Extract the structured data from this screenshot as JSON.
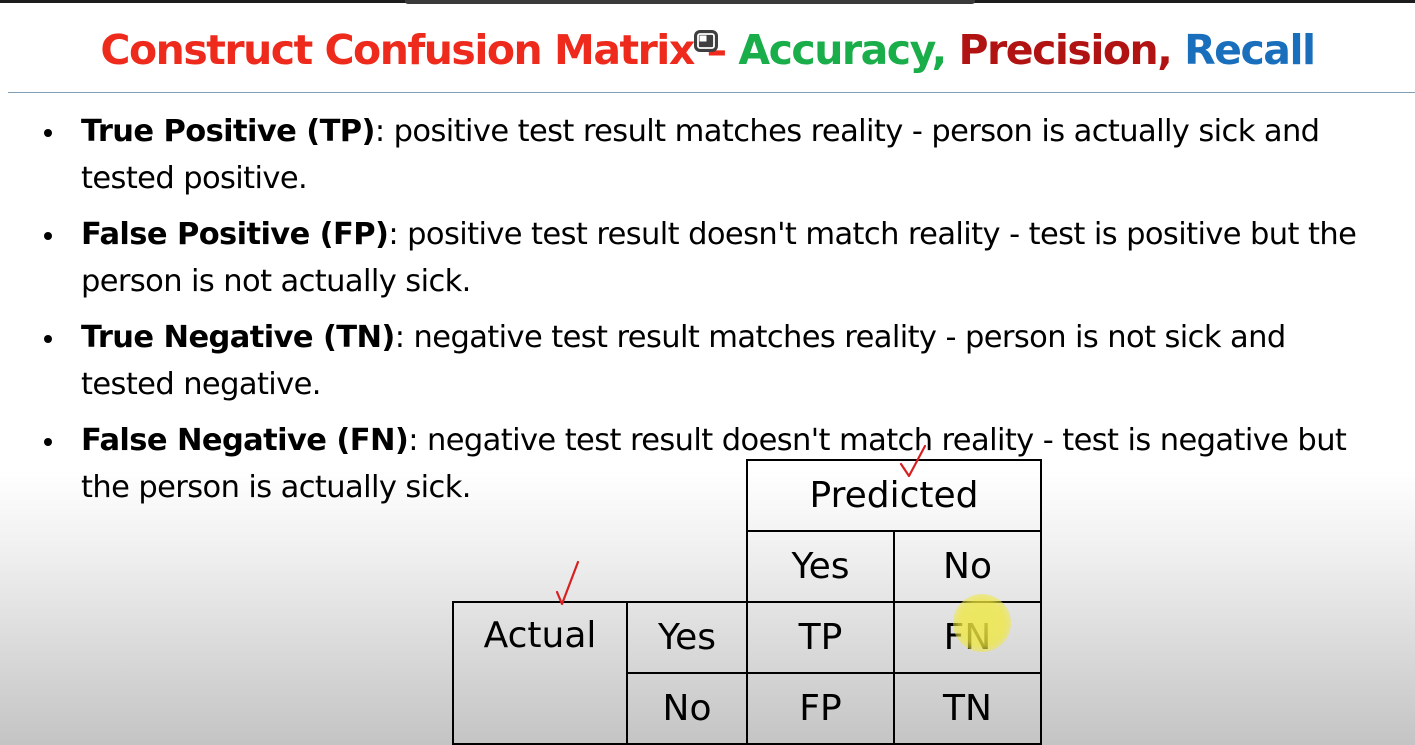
{
  "title": {
    "part1": "Construct Confusion Matrix",
    "dash": " – ",
    "accuracy": "Accuracy,",
    "precision": "Precision,",
    "recall": "Recall"
  },
  "colors": {
    "title_red": "#ee2a1d",
    "accuracy_green": "#1aae4b",
    "precision_darkred": "#b11212",
    "recall_blue": "#1a6fbc",
    "rule": "#7f9db5",
    "annotation_red": "#d82020",
    "pointer_yellow": "#eee846"
  },
  "overlay": {
    "pip_icon": "picture-in-picture-icon"
  },
  "bullets": [
    {
      "term": "True Positive (TP)",
      "desc": ": positive test result matches reality - person is actually sick and tested positive."
    },
    {
      "term": "False Positive (FP)",
      "desc": ": positive test result doesn't match reality - test is positive but the person is not actually sick."
    },
    {
      "term": "True Negative (TN)",
      "desc": ": negative test result matches reality - person is not sick and tested negative."
    },
    {
      "term": "False Negative (FN)",
      "desc": ": negative test result doesn't match reality - test is negative but the person is actually sick."
    }
  ],
  "matrix": {
    "predicted_header": "Predicted",
    "pred_yes": "Yes",
    "pred_no": "No",
    "actual_label": "Actual",
    "actual_yes": "Yes",
    "actual_no": "No",
    "tp": "TP",
    "fn": "FN",
    "fp": "FP",
    "tn": "TN"
  }
}
